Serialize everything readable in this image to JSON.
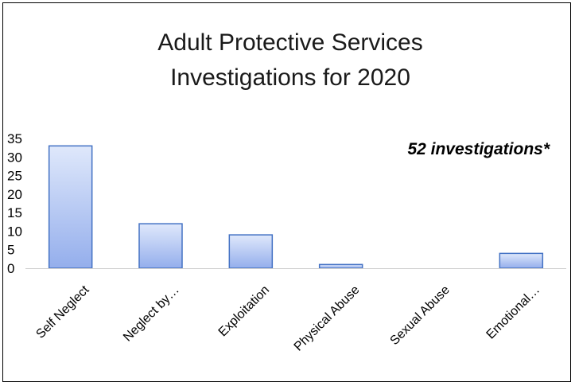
{
  "chart_data": {
    "type": "bar",
    "title": [
      "Adult Protective Services",
      "Investigations for 2020"
    ],
    "annotation": "52 investigations*",
    "categories": [
      "Self Neglect",
      "Neglect by…",
      "Exploitation",
      "Physical Abuse",
      "Sexual Abuse",
      "Emotional…"
    ],
    "values": [
      33,
      12,
      9,
      1,
      0,
      4
    ],
    "yticks": [
      "0",
      "5",
      "10",
      "15",
      "20",
      "25",
      "30",
      "35"
    ],
    "ylim": [
      0,
      35
    ],
    "grid": false,
    "legend": "none",
    "colors": {
      "bar_top": "#dfe8fb",
      "bar_bottom": "#94aeec",
      "bar_border": "#4472c4",
      "axis": "#d0d0d0"
    }
  }
}
